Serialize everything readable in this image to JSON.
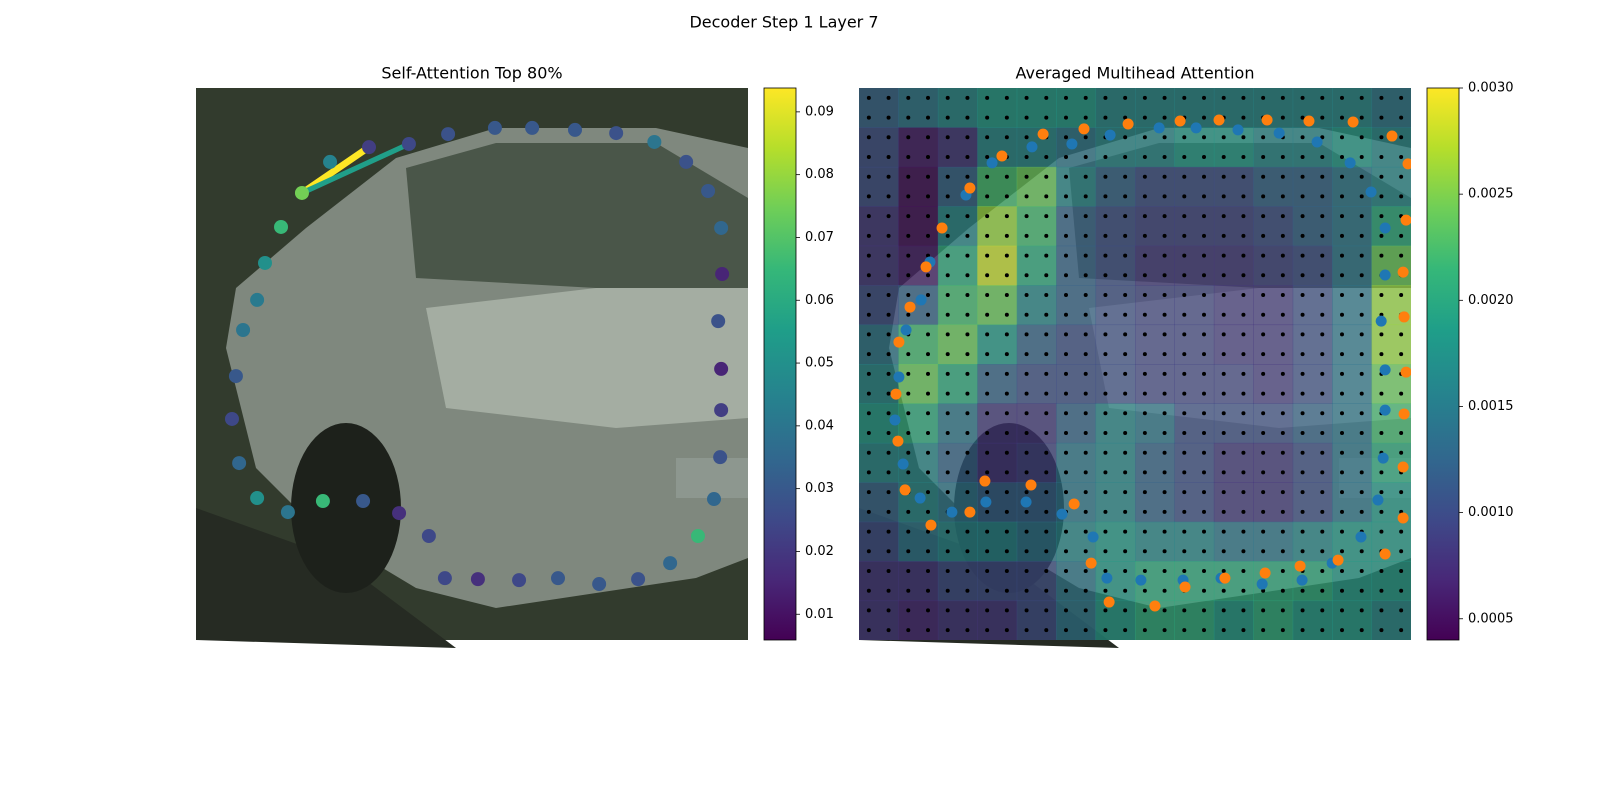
{
  "title": "Decoder Step 1 Layer 7",
  "chart_data": [
    {
      "type": "scatter",
      "title": "Self-Attention Top 80%",
      "colormap": "viridis",
      "xlim": [
        0,
        224
      ],
      "ylim": [
        224,
        0
      ],
      "x": [
        43.0,
        54.4,
        70.2,
        86.4,
        102.3,
        121.3,
        136.4,
        153.8,
        170.5,
        186.0,
        198.9,
        207.8,
        213.1,
        213.5,
        211.9,
        213.1,
        213.1,
        212.7,
        210.2,
        203.7,
        192.4,
        179.4,
        163.6,
        146.9,
        131.1,
        114.4,
        101.0,
        94.5,
        82.4,
        67.8,
        51.5,
        37.3,
        24.8,
        17.5,
        14.6,
        16.2,
        19.1,
        24.8,
        28.0,
        34.5
      ],
      "y": [
        42.6,
        30.0,
        24.0,
        22.7,
        18.7,
        16.2,
        16.2,
        17.0,
        18.3,
        21.9,
        30.0,
        41.8,
        56.8,
        75.5,
        94.6,
        114.0,
        130.7,
        149.8,
        166.8,
        181.8,
        192.8,
        199.3,
        201.3,
        198.9,
        199.7,
        199.3,
        198.9,
        181.8,
        172.5,
        167.6,
        167.6,
        172.1,
        166.4,
        152.2,
        134.3,
        116.9,
        98.2,
        86.0,
        71.0,
        56.4
      ],
      "values": [
        0.075,
        0.045,
        0.022,
        0.025,
        0.028,
        0.03,
        0.03,
        0.03,
        0.028,
        0.04,
        0.028,
        0.03,
        0.035,
        0.015,
        0.028,
        0.015,
        0.022,
        0.028,
        0.035,
        0.065,
        0.035,
        0.028,
        0.03,
        0.03,
        0.025,
        0.018,
        0.025,
        0.025,
        0.018,
        0.03,
        0.065,
        0.04,
        0.05,
        0.035,
        0.025,
        0.03,
        0.04,
        0.042,
        0.05,
        0.065
      ],
      "links": [
        {
          "source": 0,
          "target": 2,
          "value": 0.094
        },
        {
          "source": 0,
          "target": 3,
          "value": 0.055
        }
      ],
      "clim": [
        0.0059,
        0.0938
      ],
      "cticks": [
        0.01,
        0.02,
        0.03,
        0.04,
        0.05,
        0.06,
        0.07,
        0.08,
        0.09
      ]
    },
    {
      "type": "heatmap",
      "title": "Averaged Multihead Attention",
      "colormap": "viridis",
      "xlim": [
        0,
        224
      ],
      "ylim": [
        224,
        0
      ],
      "matrix": [
        [
          0.0012,
          0.0014,
          0.0016,
          0.0018,
          0.0018,
          0.0018,
          0.0016,
          0.0016,
          0.0016,
          0.0016,
          0.0016,
          0.0016,
          0.0016,
          0.0014
        ],
        [
          0.001,
          0.0006,
          0.0008,
          0.0016,
          0.0016,
          0.0014,
          0.0016,
          0.0016,
          0.0018,
          0.0018,
          0.0016,
          0.0016,
          0.0018,
          0.0016
        ],
        [
          0.001,
          0.0005,
          0.0012,
          0.0022,
          0.0024,
          0.0016,
          0.0012,
          0.001,
          0.001,
          0.001,
          0.0012,
          0.0012,
          0.0014,
          0.0016
        ],
        [
          0.0008,
          0.0005,
          0.0016,
          0.0026,
          0.0022,
          0.0012,
          0.001,
          0.0009,
          0.0009,
          0.0009,
          0.001,
          0.0012,
          0.0014,
          0.002
        ],
        [
          0.0008,
          0.0006,
          0.002,
          0.0028,
          0.002,
          0.0012,
          0.001,
          0.0008,
          0.0008,
          0.0008,
          0.0009,
          0.001,
          0.0014,
          0.0024
        ],
        [
          0.001,
          0.0012,
          0.0022,
          0.0024,
          0.0016,
          0.0012,
          0.001,
          0.0009,
          0.0009,
          0.0008,
          0.0008,
          0.001,
          0.0014,
          0.0026
        ],
        [
          0.0014,
          0.0022,
          0.0024,
          0.0018,
          0.0012,
          0.001,
          0.001,
          0.0009,
          0.0009,
          0.0008,
          0.0008,
          0.001,
          0.0014,
          0.0026
        ],
        [
          0.0016,
          0.0024,
          0.002,
          0.0012,
          0.001,
          0.001,
          0.001,
          0.0009,
          0.0009,
          0.0009,
          0.0008,
          0.001,
          0.0014,
          0.0024
        ],
        [
          0.0018,
          0.002,
          0.0014,
          0.0008,
          0.0008,
          0.0012,
          0.0016,
          0.0014,
          0.001,
          0.001,
          0.001,
          0.0012,
          0.0014,
          0.0022
        ],
        [
          0.0016,
          0.0016,
          0.0012,
          0.0008,
          0.0009,
          0.0014,
          0.0016,
          0.0012,
          0.001,
          0.0008,
          0.0008,
          0.001,
          0.0014,
          0.002
        ],
        [
          0.0012,
          0.0016,
          0.0014,
          0.0012,
          0.0012,
          0.0014,
          0.0016,
          0.0012,
          0.001,
          0.0008,
          0.0008,
          0.001,
          0.0014,
          0.0018
        ],
        [
          0.001,
          0.0014,
          0.0016,
          0.0016,
          0.0014,
          0.0016,
          0.0018,
          0.0016,
          0.0016,
          0.0014,
          0.0014,
          0.0016,
          0.0018,
          0.0018
        ],
        [
          0.0008,
          0.0008,
          0.001,
          0.001,
          0.001,
          0.0014,
          0.0018,
          0.002,
          0.002,
          0.002,
          0.002,
          0.002,
          0.0018,
          0.0018
        ],
        [
          0.0008,
          0.0007,
          0.0008,
          0.0008,
          0.001,
          0.0014,
          0.0018,
          0.002,
          0.002,
          0.0018,
          0.002,
          0.0018,
          0.0018,
          0.0016
        ]
      ],
      "clim": [
        0.0004,
        0.003
      ],
      "cticks": [
        0.0005,
        {
          "value": 0.001,
          "label": "0.0010"
        },
        0.0015,
        {
          "value": 0.002,
          "label": "0.0020"
        },
        0.0025,
        {
          "value": 0.003,
          "label": "0.0030"
        }
      ],
      "series": [
        {
          "color": "#1f77b4",
          "x": [
            25.2,
            19.1,
            16.2,
            14.6,
            17.9,
            24.8,
            37.7,
            51.5,
            67.8,
            82.4,
            95.0,
            100.6,
            114.4,
            131.5,
            146.9,
            163.6,
            179.8,
            192.0,
            203.7,
            210.6,
            212.7,
            213.5,
            213.5,
            211.9,
            213.5,
            213.5,
            207.8,
            199.3,
            185.9,
            170.5,
            153.8,
            136.8,
            121.8,
            101.9,
            86.4,
            70.2,
            54.0,
            43.4,
            28.8
          ],
          "y": [
            86.0,
            98.2,
            117.3,
            134.7,
            152.6,
            166.4,
            172.1,
            168.0,
            168.0,
            172.9,
            182.2,
            198.9,
            199.7,
            199.7,
            198.9,
            201.3,
            199.7,
            192.8,
            182.2,
            167.2,
            150.2,
            130.7,
            114.4,
            94.6,
            75.9,
            56.8,
            42.2,
            30.4,
            21.9,
            18.3,
            17.0,
            16.2,
            16.2,
            19.1,
            22.7,
            23.9,
            30.4,
            43.4,
            70.6
          ]
        },
        {
          "color": "#ff7f0e",
          "x": [
            20.7,
            16.2,
            15.0,
            15.8,
            18.7,
            29.2,
            45.0,
            51.1,
            69.8,
            87.3,
            94.2,
            101.5,
            120.1,
            132.3,
            148.5,
            164.8,
            179.0,
            194.4,
            213.5,
            220.8,
            220.8,
            221.2,
            222.0,
            221.2,
            220.8,
            222.0,
            222.8,
            216.3,
            200.5,
            182.6,
            165.6,
            146.1,
            130.3,
            109.2,
            91.3,
            74.7,
            58.0,
            45.0,
            33.7,
            27.2
          ],
          "y": [
            88.9,
            103.1,
            124.2,
            143.3,
            163.1,
            177.4,
            172.1,
            159.5,
            161.1,
            168.8,
            192.8,
            208.6,
            210.2,
            202.5,
            198.9,
            196.8,
            194.0,
            191.6,
            189.1,
            174.5,
            153.8,
            132.3,
            115.3,
            92.9,
            74.7,
            53.6,
            30.8,
            19.5,
            13.8,
            13.4,
            13.0,
            13.0,
            13.4,
            14.6,
            16.6,
            18.7,
            27.6,
            40.6,
            56.8,
            72.6
          ]
        }
      ]
    }
  ]
}
